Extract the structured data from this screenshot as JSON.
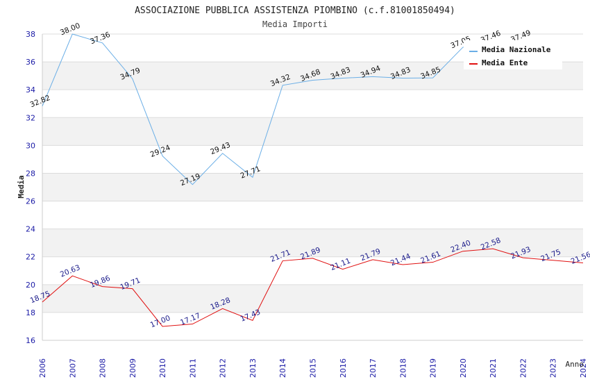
{
  "chart_data": {
    "type": "line",
    "title": "ASSOCIAZIONE PUBBLICA ASSISTENZA PIOMBINO (c.f.81001850494)",
    "subtitle": "Media Importi",
    "xlabel": "Anno",
    "ylabel": "Media",
    "ylim": [
      16,
      38
    ],
    "yticks": [
      "16",
      "18",
      "20",
      "22",
      "24",
      "26",
      "28",
      "30",
      "32",
      "34",
      "36",
      "38"
    ],
    "x": [
      "2006",
      "2007",
      "2008",
      "2009",
      "2010",
      "2011",
      "2012",
      "2013",
      "2014",
      "2015",
      "2016",
      "2017",
      "2018",
      "2019",
      "2020",
      "2021",
      "2022",
      "2023",
      "2024"
    ],
    "legend_position": "top-right",
    "series": [
      {
        "name": "Media Nazionale",
        "color": "#6aaee6",
        "label_color": "#111111",
        "values": [
          32.82,
          38.0,
          37.36,
          34.79,
          29.24,
          27.19,
          29.43,
          27.71,
          34.32,
          34.68,
          34.83,
          34.94,
          34.83,
          34.85,
          37.05,
          37.46,
          37.49,
          null,
          null
        ],
        "labels": [
          "32.82",
          "38.00",
          "37.36",
          "34.79",
          "29.24",
          "27.19",
          "29.43",
          "27.71",
          "34.32",
          "34.68",
          "34.83",
          "34.94",
          "34.83",
          "34.85",
          "37.05",
          "37.46",
          "37.49",
          "",
          ""
        ]
      },
      {
        "name": "Media Ente",
        "color": "#e01010",
        "label_color": "#1a1a8a",
        "values": [
          18.75,
          20.63,
          19.86,
          19.71,
          17.0,
          17.17,
          18.28,
          17.43,
          21.71,
          21.89,
          21.11,
          21.79,
          21.44,
          21.61,
          22.4,
          22.58,
          21.93,
          21.75,
          21.56
        ],
        "labels": [
          "18.75",
          "20.63",
          "19.86",
          "19.71",
          "17.00",
          "17.17",
          "18.28",
          "17.43",
          "21.71",
          "21.89",
          "21.11",
          "21.79",
          "21.44",
          "21.61",
          "22.40",
          "22.58",
          "21.93",
          "21.75",
          "21.56"
        ]
      }
    ]
  }
}
